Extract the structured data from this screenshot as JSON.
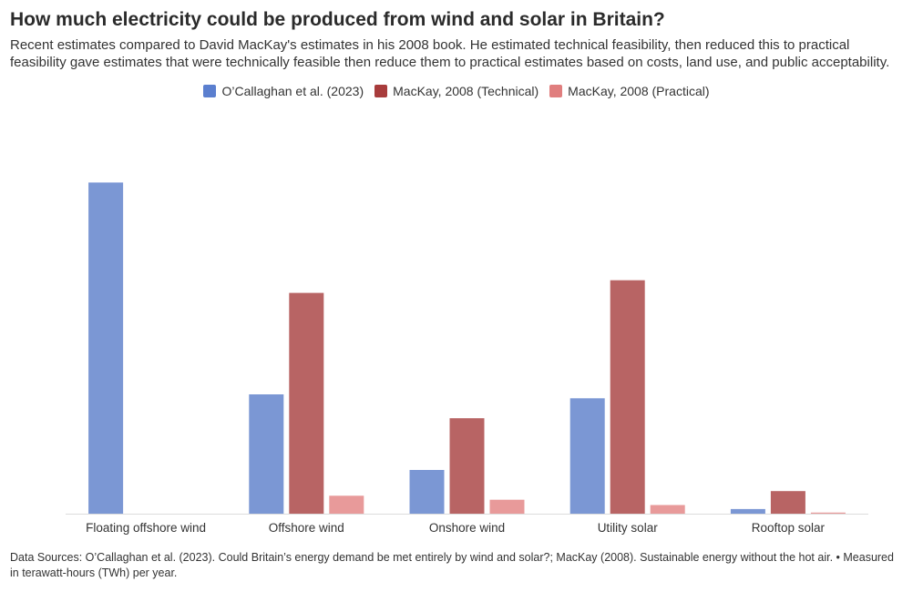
{
  "header": {
    "title": "How much electricity could be produced from wind and solar in Britain?",
    "subtitle": "Recent estimates compared to David MacKay's estimates in his 2008 book. He estimated technical feasibility, then reduced this to practical feasibility gave estimates that were technically feasible then reduce them to practical estimates based on costs, land use, and public acceptability."
  },
  "footer": {
    "note": "Data Sources: O’Callaghan et al. (2023). Could Britain’s energy demand be met entirely by wind and solar?; MacKay (2008). Sustainable energy without the hot air. • Measured in terawatt-hours (TWh) per year."
  },
  "chart_data": {
    "type": "bar",
    "title": "How much electricity could be produced from wind and solar in Britain?",
    "xlabel": "",
    "ylabel": "",
    "grid": false,
    "legend_position": "top-center",
    "categories": [
      "Floating offshore wind",
      "Offshore wind",
      "Onshore wind",
      "Utility solar",
      "Rooftop solar"
    ],
    "ylim": [
      0,
      2500
    ],
    "series": [
      {
        "name": "O’Callaghan et al. (2023)",
        "color": "#7b97d4",
        "legend_color": "#5b7fcf",
        "values": [
          2497,
          900,
          330,
          870,
          35
        ]
      },
      {
        "name": "MacKay, 2008 (Technical)",
        "color": "#b86464",
        "legend_color": "#a83c3c",
        "values": [
          0,
          1665,
          720,
          1760,
          170
        ]
      },
      {
        "name": "MacKay, 2008 (Practical)",
        "color": "#e89a9a",
        "legend_color": "#e07e7e",
        "values": [
          0,
          135,
          105,
          65,
          8
        ]
      }
    ]
  }
}
